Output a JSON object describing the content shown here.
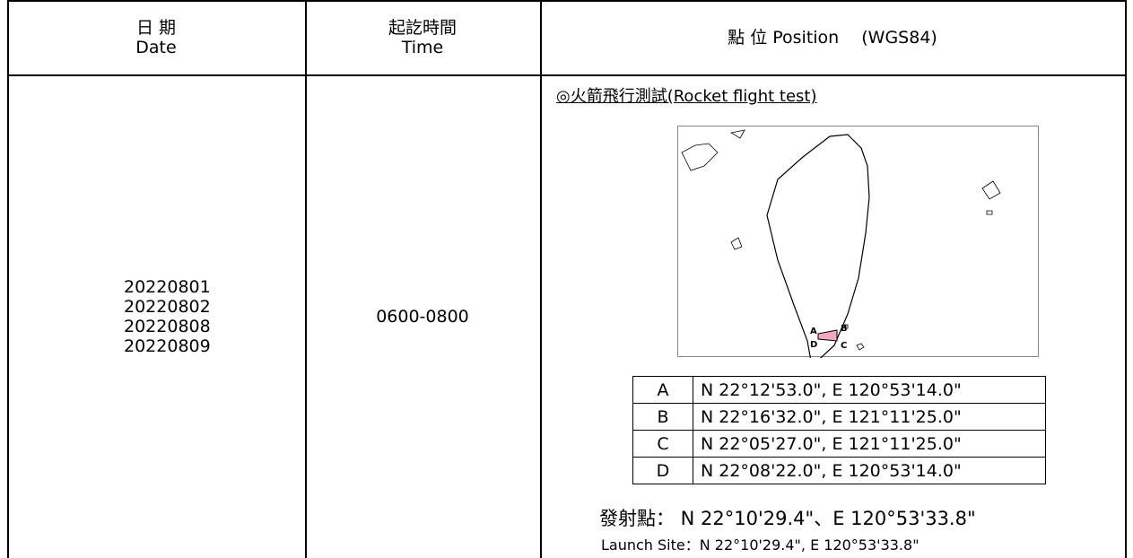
{
  "header": {
    "date": [
      "日 期",
      "Date"
    ],
    "time": [
      "起訖時間",
      "Time"
    ],
    "position": "點 位 Position　 (WGS84)"
  },
  "row": {
    "dates": [
      "20220801",
      "20220802",
      "20220808",
      "20220809"
    ],
    "time": "0600-0800",
    "title": "◎火箭飛行測試(Rocket flight test)",
    "points": [
      [
        "A",
        "N 22°12'53.0\", E 120°53'14.0\""
      ],
      [
        "B",
        "N 22°16'32.0\", E 121°11'25.0\""
      ],
      [
        "C",
        "N 22°05'27.0\", E 121°11'25.0\""
      ],
      [
        "D",
        "N 22°08'22.0\", E 120°53'14.0\""
      ]
    ],
    "launch_zh": "發射點： N 22°10'29.4\"、E 120°53'33.8\"",
    "launch_en": "Launch Site：N 22°10'29.4\", E 120°53'33.8\""
  }
}
